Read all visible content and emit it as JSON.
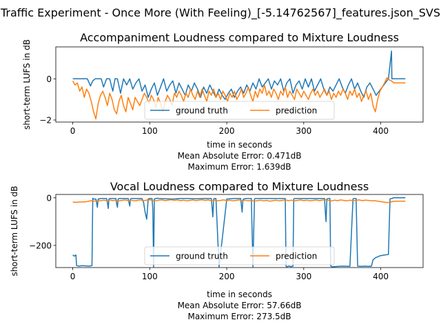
{
  "figure_title": "Traffic Experiment - Once More (With Feeling)_[-5.14762567]_features.json_SVS",
  "colors": {
    "ground_truth": "#1f77b4",
    "prediction": "#ff7f0e"
  },
  "chart_data": [
    {
      "type": "line",
      "title": "Accompaniment Loudness compared to Mixture Loudness",
      "xlabel": "time in seconds",
      "ylabel": "short-term LUFS in dB",
      "xlim": [
        -22,
        455
      ],
      "ylim": [
        -2.1,
        1.55
      ],
      "xticks": [
        0,
        100,
        200,
        300,
        400
      ],
      "yticks": [
        -2,
        0
      ],
      "legend": {
        "position": "lower center",
        "ncol": 2
      },
      "grid": false,
      "stats": [
        "Mean Absolute Error: 0.471dB",
        "Maximum Error: 1.639dB"
      ],
      "series": [
        {
          "name": "ground truth",
          "color": "#1f77b4",
          "x": [
            0,
            6,
            11,
            19,
            23,
            26,
            29,
            33,
            37,
            40,
            44,
            48,
            52,
            55,
            58,
            62,
            66,
            70,
            74,
            78,
            82,
            86,
            90,
            94,
            98,
            102,
            106,
            110,
            114,
            118,
            122,
            126,
            130,
            134,
            138,
            142,
            146,
            150,
            154,
            158,
            162,
            166,
            170,
            174,
            178,
            182,
            186,
            190,
            194,
            198,
            202,
            206,
            210,
            214,
            218,
            222,
            226,
            230,
            234,
            238,
            242,
            246,
            250,
            254,
            258,
            262,
            266,
            270,
            274,
            278,
            282,
            286,
            290,
            294,
            298,
            302,
            306,
            310,
            314,
            318,
            322,
            326,
            330,
            334,
            338,
            342,
            346,
            350,
            354,
            358,
            362,
            366,
            370,
            374,
            378,
            382,
            386,
            390,
            394,
            398,
            402,
            406,
            410,
            414,
            414.5,
            416,
            420,
            426,
            432
          ],
          "y": [
            0,
            0,
            0,
            0,
            -0.35,
            -0.1,
            0,
            0,
            0,
            -0.4,
            0,
            0,
            -0.6,
            0,
            0,
            -0.7,
            0,
            -0.3,
            0,
            -0.5,
            -0.2,
            0,
            -0.6,
            -0.3,
            -0.9,
            -0.5,
            -0.2,
            -0.8,
            -0.4,
            0,
            -0.6,
            -0.3,
            -0.1,
            -0.7,
            -0.2,
            -0.5,
            -0.8,
            -0.3,
            -0.6,
            -0.2,
            -0.5,
            -0.9,
            -0.4,
            -0.7,
            -0.3,
            -0.6,
            -0.9,
            -0.5,
            -0.8,
            -1.0,
            -0.7,
            -0.5,
            -0.9,
            -0.6,
            -0.4,
            -0.7,
            -0.3,
            -0.6,
            -0.2,
            -0.5,
            0,
            -0.4,
            -0.2,
            0,
            -0.5,
            -0.1,
            -0.3,
            0,
            -0.6,
            -0.2,
            0,
            -0.7,
            -0.3,
            -0.1,
            -0.5,
            0,
            -0.4,
            0,
            -0.6,
            -0.3,
            0,
            -0.5,
            -0.8,
            -0.4,
            -0.6,
            -0.3,
            0,
            -0.4,
            -0.7,
            -0.3,
            0,
            -0.5,
            -0.2,
            -0.6,
            -0.9,
            -0.4,
            -0.2,
            -0.5,
            -0.8,
            -0.6,
            -0.4,
            -0.2,
            0,
            1.35,
            0,
            0,
            0,
            0,
            0
          ]
        },
        {
          "name": "prediction",
          "color": "#ff7f0e",
          "x": [
            0,
            3,
            6,
            9,
            12,
            15,
            18,
            21,
            24,
            27,
            30,
            33,
            36,
            39,
            42,
            45,
            48,
            51,
            54,
            57,
            60,
            63,
            66,
            69,
            72,
            75,
            78,
            81,
            84,
            87,
            90,
            93,
            96,
            99,
            102,
            105,
            108,
            111,
            114,
            117,
            120,
            123,
            126,
            129,
            132,
            135,
            138,
            141,
            144,
            147,
            150,
            153,
            156,
            159,
            162,
            165,
            168,
            171,
            174,
            177,
            180,
            183,
            186,
            189,
            192,
            195,
            198,
            201,
            204,
            207,
            210,
            213,
            216,
            219,
            222,
            225,
            228,
            231,
            234,
            237,
            240,
            243,
            246,
            249,
            252,
            255,
            258,
            261,
            264,
            267,
            270,
            273,
            276,
            279,
            282,
            285,
            288,
            291,
            294,
            297,
            300,
            303,
            306,
            309,
            312,
            315,
            318,
            321,
            324,
            327,
            330,
            333,
            336,
            339,
            342,
            345,
            348,
            351,
            354,
            357,
            360,
            363,
            366,
            369,
            372,
            375,
            378,
            381,
            384,
            387,
            390,
            393,
            396,
            399,
            402,
            405,
            408,
            411,
            414,
            417,
            420,
            426,
            432
          ],
          "y": [
            -0.1,
            -0.3,
            -0.2,
            -0.6,
            -0.4,
            -0.9,
            -0.5,
            -0.7,
            -1.1,
            -1.6,
            -1.95,
            -1.2,
            -0.8,
            -0.6,
            -0.9,
            -1.3,
            -0.7,
            -1.0,
            -1.5,
            -1.7,
            -1.1,
            -0.8,
            -1.3,
            -1.6,
            -0.9,
            -1.2,
            -1.5,
            -0.9,
            -1.1,
            -1.3,
            -1.0,
            -0.7,
            -0.9,
            -1.2,
            -0.8,
            -1.0,
            -1.4,
            -0.9,
            -1.2,
            -1.6,
            -1.1,
            -0.8,
            -1.0,
            -1.3,
            -0.7,
            -0.9,
            -0.6,
            -0.8,
            -1.1,
            -0.7,
            -0.9,
            -0.5,
            -0.8,
            -1.0,
            -0.6,
            -0.9,
            -0.5,
            -0.8,
            -1.1,
            -0.6,
            -0.8,
            -0.5,
            -0.9,
            -0.7,
            -1.0,
            -0.6,
            -0.8,
            -1.1,
            -0.7,
            -0.9,
            -0.6,
            -1.0,
            -0.8,
            -0.5,
            -0.9,
            -0.7,
            -0.4,
            -0.8,
            -1.1,
            -0.6,
            -0.9,
            -0.5,
            -0.7,
            -0.3,
            -0.8,
            -0.6,
            -0.9,
            -0.5,
            -0.7,
            -1.0,
            -0.6,
            -0.8,
            -0.4,
            -0.9,
            -0.6,
            -0.8,
            -1.0,
            -0.5,
            -0.7,
            -0.9,
            -0.6,
            -0.8,
            -1.0,
            -0.7,
            -0.5,
            -0.8,
            -0.6,
            -0.9,
            -0.7,
            -0.5,
            -0.8,
            -0.6,
            -1.0,
            -0.7,
            -0.9,
            -0.6,
            -0.8,
            -0.5,
            -0.7,
            -1.0,
            -0.6,
            -0.8,
            -0.5,
            -0.9,
            -0.7,
            -1.1,
            -0.8,
            -0.6,
            -1.0,
            -0.7,
            -1.3,
            -1.6,
            -1.0,
            -0.6,
            -0.4,
            -0.2,
            0.05,
            -0.05,
            -0.1,
            -0.2,
            -0.2,
            -0.2,
            -0.2
          ]
        }
      ]
    },
    {
      "type": "line",
      "title": "Vocal Loudness compared to Mixture Loudness",
      "xlabel": "time in seconds",
      "ylabel": "short-term LUFS in dB",
      "xlim": [
        -22,
        455
      ],
      "ylim": [
        -293,
        14
      ],
      "xticks": [
        0,
        100,
        200,
        300,
        400
      ],
      "yticks": [
        -200,
        0
      ],
      "legend": {
        "position": "lower center",
        "ncol": 2
      },
      "grid": false,
      "stats": [
        "Mean Absolute Error: 57.66dB",
        "Maximum Error: 273.5dB"
      ],
      "series": [
        {
          "name": "ground truth",
          "color": "#1f77b4",
          "x": [
            0,
            2,
            4,
            5,
            8,
            12,
            17,
            22,
            25,
            26,
            27,
            30,
            31,
            32,
            33,
            34,
            36,
            44,
            45,
            46,
            47,
            48,
            56,
            57,
            58,
            59,
            60,
            72,
            73,
            74,
            75,
            76,
            90,
            92,
            94,
            96,
            98,
            100,
            103,
            104,
            105,
            106,
            108,
            110,
            112,
            120,
            130,
            140,
            150,
            160,
            170,
            180,
            181,
            182,
            183,
            184,
            186,
            188,
            190,
            200,
            210,
            218,
            219,
            220,
            221,
            222,
            224,
            226,
            228,
            232,
            233,
            234,
            236,
            237,
            238,
            239,
            240,
            250,
            260,
            270,
            275,
            276,
            277,
            278,
            280,
            282,
            284,
            286,
            287,
            288,
            290,
            292,
            300,
            310,
            320,
            326,
            327,
            328,
            329,
            330,
            332,
            334,
            335,
            336,
            337,
            340,
            350,
            360,
            364,
            365,
            366,
            368,
            370,
            375,
            380,
            384,
            385,
            386,
            388,
            390,
            392,
            394,
            396,
            398,
            400,
            405,
            410,
            412,
            413,
            414,
            415,
            416,
            420,
            426,
            432
          ],
          "y": [
            -240,
            -245,
            -240,
            -285,
            -287,
            -285,
            -286,
            -287,
            -285,
            -2,
            -5,
            -5,
            -20,
            -40,
            -5,
            -5,
            -3,
            -3,
            -20,
            -45,
            -5,
            -3,
            -3,
            -25,
            -40,
            -5,
            -3,
            -3,
            -20,
            -35,
            -5,
            -3,
            -3,
            -20,
            -60,
            -90,
            -5,
            -3,
            -3,
            -50,
            -290,
            -5,
            -3,
            -2,
            -3,
            -4,
            -5,
            -3,
            -3,
            -4,
            -3,
            -3,
            -40,
            -80,
            -5,
            -3,
            -3,
            -150,
            -290,
            -5,
            -3,
            -3,
            -30,
            -60,
            -10,
            -5,
            -3,
            -3,
            -3,
            -3,
            -150,
            -290,
            -5,
            -3,
            -3,
            -3,
            -3,
            -3,
            -3,
            -3,
            -3,
            -3,
            -287,
            -290,
            -287,
            -288,
            -289,
            -287,
            -5,
            -3,
            -3,
            -3,
            -3,
            -3,
            -3,
            -3,
            -3,
            -60,
            -100,
            -5,
            -3,
            -3,
            -287,
            -288,
            -290,
            -289,
            -287,
            -288,
            -5,
            -3,
            -3,
            -3,
            -287,
            -288,
            -287,
            -288,
            -287,
            -288,
            -287,
            -260,
            -255,
            -250,
            -248,
            -245,
            -243,
            -240,
            -238,
            -5,
            -3,
            -3,
            -3,
            0,
            0,
            0,
            0
          ]
        },
        {
          "name": "prediction",
          "color": "#ff7f0e",
          "x": [
            0,
            4,
            8,
            12,
            16,
            20,
            24,
            28,
            32,
            36,
            40,
            44,
            48,
            52,
            56,
            60,
            64,
            68,
            72,
            76,
            80,
            84,
            88,
            92,
            96,
            100,
            104,
            108,
            112,
            116,
            120,
            124,
            128,
            132,
            136,
            140,
            144,
            148,
            152,
            156,
            160,
            164,
            168,
            172,
            176,
            180,
            184,
            188,
            192,
            196,
            200,
            204,
            208,
            212,
            216,
            220,
            224,
            228,
            232,
            236,
            240,
            244,
            248,
            252,
            256,
            260,
            264,
            268,
            272,
            276,
            280,
            284,
            288,
            292,
            296,
            300,
            304,
            308,
            312,
            316,
            320,
            324,
            328,
            332,
            336,
            340,
            344,
            348,
            352,
            356,
            360,
            364,
            368,
            372,
            376,
            380,
            384,
            388,
            392,
            396,
            400,
            404,
            408,
            412,
            416,
            420,
            426,
            432
          ],
          "y": [
            -18,
            -19,
            -18,
            -17,
            -17,
            -15,
            -12,
            -14,
            -11,
            -13,
            -10,
            -12,
            -9,
            -12,
            -10,
            -13,
            -11,
            -9,
            -12,
            -10,
            -13,
            -11,
            -9,
            -12,
            -10,
            -8,
            -11,
            -13,
            -10,
            -9,
            -12,
            -10,
            -8,
            -11,
            -9,
            -12,
            -10,
            -13,
            -11,
            -9,
            -12,
            -10,
            -8,
            -11,
            -9,
            -13,
            -10,
            -12,
            -11,
            -9,
            -12,
            -10,
            -13,
            -11,
            -9,
            -12,
            -10,
            -13,
            -11,
            -14,
            -12,
            -10,
            -13,
            -11,
            -14,
            -12,
            -10,
            -13,
            -11,
            -9,
            -12,
            -10,
            -13,
            -11,
            -9,
            -12,
            -10,
            -13,
            -11,
            -9,
            -12,
            -10,
            -8,
            -11,
            -13,
            -10,
            -12,
            -9,
            -11,
            -13,
            -10,
            -12,
            -11,
            -9,
            -12,
            -10,
            -11,
            -13,
            -12,
            -14,
            -16,
            -18,
            -20,
            -19,
            -15,
            -14,
            -14,
            -14
          ]
        }
      ]
    }
  ]
}
